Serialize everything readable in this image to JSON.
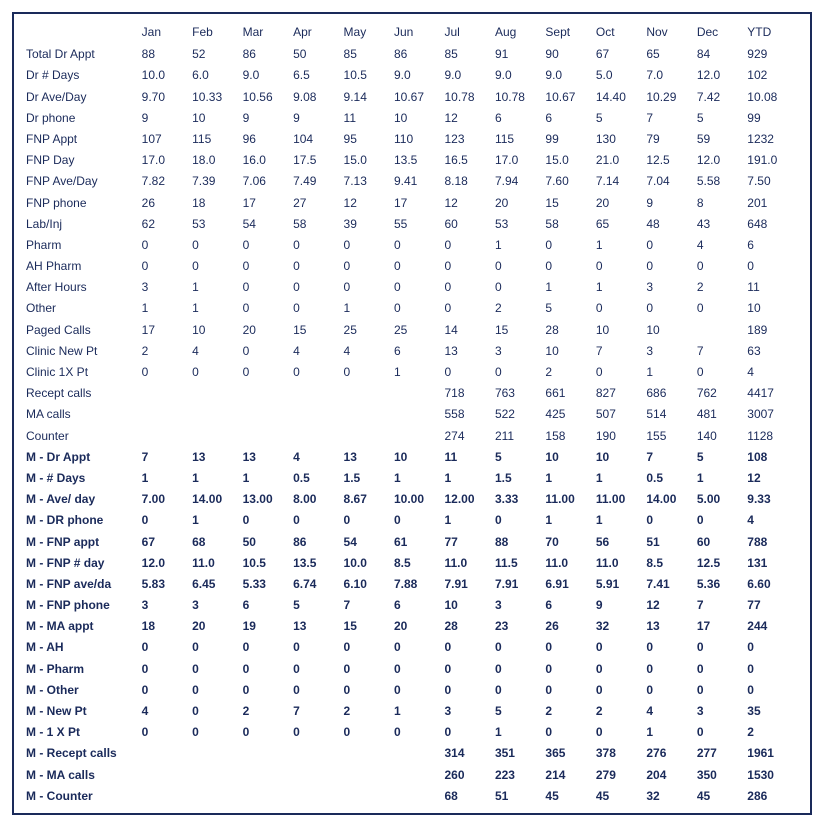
{
  "columns": [
    "Jan",
    "Feb",
    "Mar",
    "Apr",
    "May",
    "Jun",
    "Jul",
    "Aug",
    "Sept",
    "Oct",
    "Nov",
    "Dec",
    "YTD"
  ],
  "rows": [
    {
      "label": "Total Dr Appt",
      "bold": false,
      "cells": [
        "88",
        "52",
        "86",
        "50",
        "85",
        "86",
        "85",
        "91",
        "90",
        "67",
        "65",
        "84",
        "929"
      ]
    },
    {
      "label": "Dr # Days",
      "bold": false,
      "cells": [
        "10.0",
        "6.0",
        "9.0",
        "6.5",
        "10.5",
        "9.0",
        "9.0",
        "9.0",
        "9.0",
        "5.0",
        "7.0",
        "12.0",
        "102"
      ]
    },
    {
      "label": "Dr Ave/Day",
      "bold": false,
      "cells": [
        "9.70",
        "10.33",
        "10.56",
        "9.08",
        "9.14",
        "10.67",
        "10.78",
        "10.78",
        "10.67",
        "14.40",
        "10.29",
        "7.42",
        "10.08"
      ]
    },
    {
      "label": "Dr phone",
      "bold": false,
      "cells": [
        "9",
        "10",
        "9",
        "9",
        "11",
        "10",
        "12",
        "6",
        "6",
        "5",
        "7",
        "5",
        "99"
      ]
    },
    {
      "label": "FNP Appt",
      "bold": false,
      "cells": [
        "107",
        "115",
        "96",
        "104",
        "95",
        "110",
        "123",
        "115",
        "99",
        "130",
        "79",
        "59",
        "1232"
      ]
    },
    {
      "label": "FNP Day",
      "bold": false,
      "cells": [
        "17.0",
        "18.0",
        "16.0",
        "17.5",
        "15.0",
        "13.5",
        "16.5",
        "17.0",
        "15.0",
        "21.0",
        "12.5",
        "12.0",
        "191.0"
      ]
    },
    {
      "label": "FNP Ave/Day",
      "bold": false,
      "cells": [
        "7.82",
        "7.39",
        "7.06",
        "7.49",
        "7.13",
        "9.41",
        "8.18",
        "7.94",
        "7.60",
        "7.14",
        "7.04",
        "5.58",
        "7.50"
      ]
    },
    {
      "label": "FNP phone",
      "bold": false,
      "cells": [
        "26",
        "18",
        "17",
        "27",
        "12",
        "17",
        "12",
        "20",
        "15",
        "20",
        "9",
        "8",
        "201"
      ]
    },
    {
      "label": "Lab/Inj",
      "bold": false,
      "cells": [
        "62",
        "53",
        "54",
        "58",
        "39",
        "55",
        "60",
        "53",
        "58",
        "65",
        "48",
        "43",
        "648"
      ]
    },
    {
      "label": "Pharm",
      "bold": false,
      "cells": [
        "0",
        "0",
        "0",
        "0",
        "0",
        "0",
        "0",
        "1",
        "0",
        "1",
        "0",
        "4",
        "6"
      ]
    },
    {
      "label": "AH Pharm",
      "bold": false,
      "cells": [
        "0",
        "0",
        "0",
        "0",
        "0",
        "0",
        "0",
        "0",
        "0",
        "0",
        "0",
        "0",
        "0"
      ]
    },
    {
      "label": "After Hours",
      "bold": false,
      "cells": [
        "3",
        "1",
        "0",
        "0",
        "0",
        "0",
        "0",
        "0",
        "1",
        "1",
        "3",
        "2",
        "11"
      ]
    },
    {
      "label": "Other",
      "bold": false,
      "cells": [
        "1",
        "1",
        "0",
        "0",
        "1",
        "0",
        "0",
        "2",
        "5",
        "0",
        "0",
        "0",
        "10"
      ]
    },
    {
      "label": "Paged Calls",
      "bold": false,
      "cells": [
        "17",
        "10",
        "20",
        "15",
        "25",
        "25",
        "14",
        "15",
        "28",
        "10",
        "10",
        "",
        "189"
      ]
    },
    {
      "label": "Clinic New Pt",
      "bold": false,
      "cells": [
        "2",
        "4",
        "0",
        "4",
        "4",
        "6",
        "13",
        "3",
        "10",
        "7",
        "3",
        "7",
        "63"
      ]
    },
    {
      "label": "Clinic 1X Pt",
      "bold": false,
      "cells": [
        "0",
        "0",
        "0",
        "0",
        "0",
        "1",
        "0",
        "0",
        "2",
        "0",
        "1",
        "0",
        "4"
      ]
    },
    {
      "label": "Recept calls",
      "bold": false,
      "cells": [
        "",
        "",
        "",
        "",
        "",
        "",
        "718",
        "763",
        "661",
        "827",
        "686",
        "762",
        "4417"
      ]
    },
    {
      "label": "MA calls",
      "bold": false,
      "cells": [
        "",
        "",
        "",
        "",
        "",
        "",
        "558",
        "522",
        "425",
        "507",
        "514",
        "481",
        "3007"
      ]
    },
    {
      "label": "Counter",
      "bold": false,
      "cells": [
        "",
        "",
        "",
        "",
        "",
        "",
        "274",
        "211",
        "158",
        "190",
        "155",
        "140",
        "1128"
      ]
    },
    {
      "label": "M - Dr Appt",
      "bold": true,
      "cells": [
        "7",
        "13",
        "13",
        "4",
        "13",
        "10",
        "11",
        "5",
        "10",
        "10",
        "7",
        "5",
        "108"
      ]
    },
    {
      "label": "M - # Days",
      "bold": true,
      "cells": [
        "1",
        "1",
        "1",
        "0.5",
        "1.5",
        "1",
        "1",
        "1.5",
        "1",
        "1",
        "0.5",
        "1",
        "12"
      ]
    },
    {
      "label": "M - Ave/ day",
      "bold": true,
      "cells": [
        "7.00",
        "14.00",
        "13.00",
        "8.00",
        "8.67",
        "10.00",
        "12.00",
        "3.33",
        "11.00",
        "11.00",
        "14.00",
        "5.00",
        "9.33"
      ]
    },
    {
      "label": "M - DR phone",
      "bold": true,
      "cells": [
        "0",
        "1",
        "0",
        "0",
        "0",
        "0",
        "1",
        "0",
        "1",
        "1",
        "0",
        "0",
        "4"
      ]
    },
    {
      "label": "M - FNP appt",
      "bold": true,
      "cells": [
        "67",
        "68",
        "50",
        "86",
        "54",
        "61",
        "77",
        "88",
        "70",
        "56",
        "51",
        "60",
        "788"
      ]
    },
    {
      "label": "M - FNP # day",
      "bold": true,
      "cells": [
        "12.0",
        "11.0",
        "10.5",
        "13.5",
        "10.0",
        "8.5",
        "11.0",
        "11.5",
        "11.0",
        "11.0",
        "8.5",
        "12.5",
        "131"
      ]
    },
    {
      "label": "M - FNP ave/da",
      "bold": true,
      "cells": [
        "5.83",
        "6.45",
        "5.33",
        "6.74",
        "6.10",
        "7.88",
        "7.91",
        "7.91",
        "6.91",
        "5.91",
        "7.41",
        "5.36",
        "6.60"
      ]
    },
    {
      "label": "M - FNP phone",
      "bold": true,
      "cells": [
        "3",
        "3",
        "6",
        "5",
        "7",
        "6",
        "10",
        "3",
        "6",
        "9",
        "12",
        "7",
        "77"
      ]
    },
    {
      "label": "M - MA appt",
      "bold": true,
      "cells": [
        "18",
        "20",
        "19",
        "13",
        "15",
        "20",
        "28",
        "23",
        "26",
        "32",
        "13",
        "17",
        "244"
      ]
    },
    {
      "label": "M - AH",
      "bold": true,
      "cells": [
        "0",
        "0",
        "0",
        "0",
        "0",
        "0",
        "0",
        "0",
        "0",
        "0",
        "0",
        "0",
        "0"
      ]
    },
    {
      "label": "M - Pharm",
      "bold": true,
      "cells": [
        "0",
        "0",
        "0",
        "0",
        "0",
        "0",
        "0",
        "0",
        "0",
        "0",
        "0",
        "0",
        "0"
      ]
    },
    {
      "label": "M - Other",
      "bold": true,
      "cells": [
        "0",
        "0",
        "0",
        "0",
        "0",
        "0",
        "0",
        "0",
        "0",
        "0",
        "0",
        "0",
        "0"
      ]
    },
    {
      "label": "M - New Pt",
      "bold": true,
      "cells": [
        "4",
        "0",
        "2",
        "7",
        "2",
        "1",
        "3",
        "5",
        "2",
        "2",
        "4",
        "3",
        "35"
      ]
    },
    {
      "label": "M - 1 X Pt",
      "bold": true,
      "cells": [
        "0",
        "0",
        "0",
        "0",
        "0",
        "0",
        "0",
        "1",
        "0",
        "0",
        "1",
        "0",
        "2"
      ]
    },
    {
      "label": "M - Recept calls",
      "bold": true,
      "cells": [
        "",
        "",
        "",
        "",
        "",
        "",
        "314",
        "351",
        "365",
        "378",
        "276",
        "277",
        "1961"
      ]
    },
    {
      "label": "M - MA calls",
      "bold": true,
      "cells": [
        "",
        "",
        "",
        "",
        "",
        "",
        "260",
        "223",
        "214",
        "279",
        "204",
        "350",
        "1530"
      ]
    },
    {
      "label": "M - Counter",
      "bold": true,
      "cells": [
        "",
        "",
        "",
        "",
        "",
        "",
        "68",
        "51",
        "45",
        "45",
        "32",
        "45",
        "286"
      ]
    }
  ]
}
